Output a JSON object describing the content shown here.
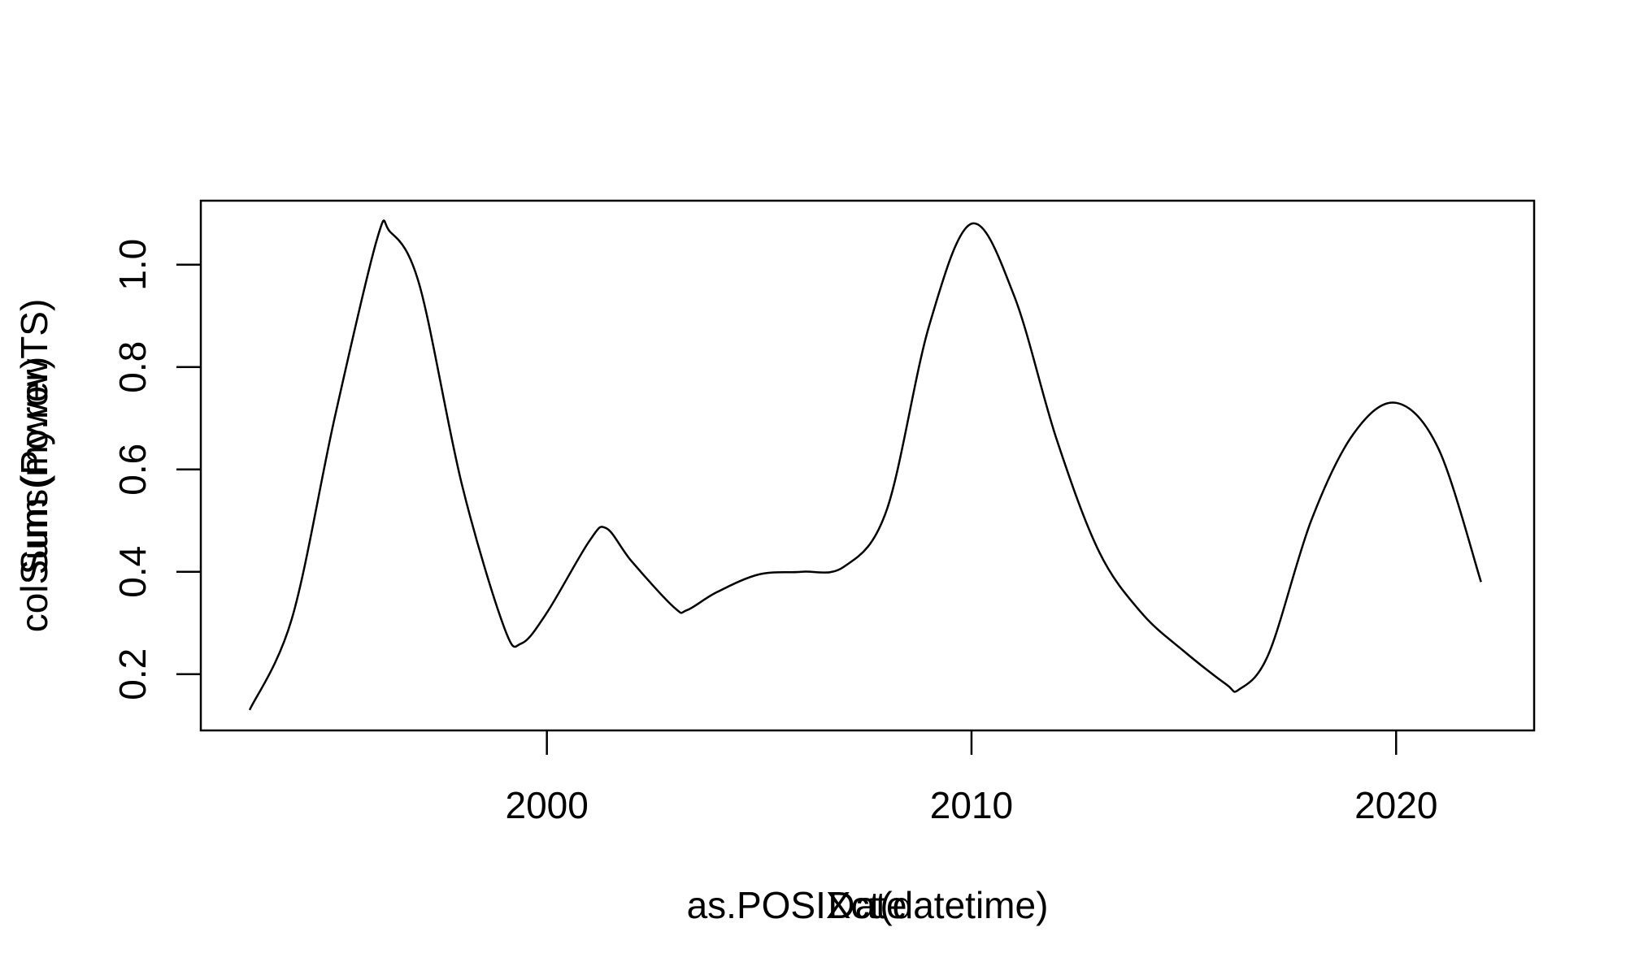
{
  "chart_data": {
    "type": "line",
    "xlabel_overprint": [
      "as.POSIXct(datetime)",
      "Date"
    ],
    "ylabel_overprint": [
      "colSums(my.rowTS)",
      "Sum (Power)"
    ],
    "x_tick_labels": [
      "2000",
      "2010",
      "2020"
    ],
    "x_ticks": [
      2000,
      2010,
      2020
    ],
    "y_tick_labels": [
      "0.2",
      "0.4",
      "0.6",
      "0.8",
      "1.0"
    ],
    "y_ticks": [
      0.2,
      0.4,
      0.6,
      0.8,
      1.0
    ],
    "xlim": [
      1991.85,
      2023.25
    ],
    "ylim": [
      0.09,
      1.125
    ],
    "grid": false,
    "legend": "none",
    "line_color": "#000000",
    "series": [
      {
        "x": [
          1993.0,
          1994.0,
          1995.0,
          1996.0,
          1996.3,
          1997.0,
          1998.0,
          1999.0,
          1999.4,
          2000.0,
          2001.0,
          2001.4,
          2002.0,
          2003.0,
          2003.3,
          2004.0,
          2005.0,
          2006.0,
          2007.0,
          2008.0,
          2009.0,
          2010.0,
          2011.0,
          2012.0,
          2013.0,
          2014.0,
          2015.0,
          2016.0,
          2016.3,
          2017.0,
          2018.0,
          2019.0,
          2020.0,
          2021.0,
          2022.0
        ],
        "y": [
          0.13,
          0.31,
          0.7,
          1.05,
          1.065,
          0.96,
          0.57,
          0.29,
          0.26,
          0.32,
          0.46,
          0.485,
          0.42,
          0.33,
          0.325,
          0.36,
          0.395,
          0.4,
          0.41,
          0.52,
          0.88,
          1.08,
          0.94,
          0.66,
          0.44,
          0.32,
          0.245,
          0.18,
          0.17,
          0.24,
          0.5,
          0.67,
          0.73,
          0.64,
          0.38
        ]
      }
    ]
  }
}
